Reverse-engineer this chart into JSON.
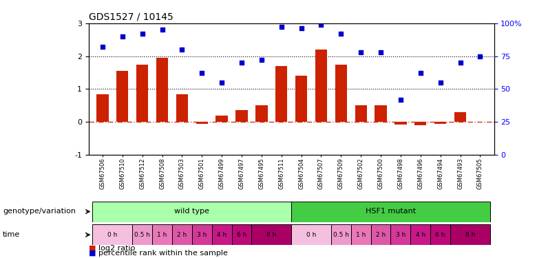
{
  "title": "GDS1527 / 10145",
  "samples": [
    "GSM67506",
    "GSM67510",
    "GSM67512",
    "GSM67508",
    "GSM67503",
    "GSM67501",
    "GSM67499",
    "GSM67497",
    "GSM67495",
    "GSM67511",
    "GSM67504",
    "GSM67507",
    "GSM67509",
    "GSM67502",
    "GSM67500",
    "GSM67498",
    "GSM67496",
    "GSM67494",
    "GSM67493",
    "GSM67505"
  ],
  "log2_ratio": [
    0.85,
    1.55,
    1.75,
    1.95,
    0.85,
    -0.05,
    0.2,
    0.35,
    0.5,
    1.7,
    1.4,
    2.2,
    1.75,
    0.5,
    0.5,
    -0.08,
    -0.1,
    -0.05,
    0.3,
    0.0
  ],
  "percentile": [
    82,
    90,
    92,
    95,
    80,
    62,
    55,
    70,
    72,
    97,
    96,
    99,
    92,
    78,
    78,
    42,
    62,
    55,
    70,
    75
  ],
  "bar_color": "#cc2200",
  "dot_color": "#0000cc",
  "ylim_left": [
    -1,
    3
  ],
  "ylim_right": [
    0,
    100
  ],
  "yticks_left": [
    -1,
    0,
    1,
    2,
    3
  ],
  "yticks_right": [
    0,
    25,
    50,
    75,
    100
  ],
  "ytick_labels_right": [
    "0",
    "25",
    "50",
    "75",
    "100%"
  ],
  "hline_y": [
    0,
    1,
    2
  ],
  "hline_styles": [
    "dashdot",
    "dotted",
    "dotted"
  ],
  "hline_colors": [
    "#cc2200",
    "#000000",
    "#000000"
  ],
  "genotype_groups": [
    {
      "label": "wild type",
      "start": 0,
      "end": 9,
      "color": "#aaffaa"
    },
    {
      "label": "HSF1 mutant",
      "start": 10,
      "end": 19,
      "color": "#44cc44"
    }
  ],
  "time_segments": [
    {
      "label": "0 h",
      "start": 0,
      "end": 1,
      "color": "#f5c0e0"
    },
    {
      "label": "0.5 h",
      "start": 2,
      "end": 2,
      "color": "#ee99cc"
    },
    {
      "label": "1 h",
      "start": 3,
      "end": 3,
      "color": "#e878b8"
    },
    {
      "label": "2 h",
      "start": 4,
      "end": 4,
      "color": "#de58a8"
    },
    {
      "label": "3 h",
      "start": 5,
      "end": 5,
      "color": "#d43898"
    },
    {
      "label": "4 h",
      "start": 6,
      "end": 6,
      "color": "#c81888"
    },
    {
      "label": "6 h",
      "start": 7,
      "end": 7,
      "color": "#bc0878"
    },
    {
      "label": "8 h",
      "start": 8,
      "end": 9,
      "color": "#aa0066"
    },
    {
      "label": "0 h",
      "start": 10,
      "end": 11,
      "color": "#f5c0e0"
    },
    {
      "label": "0.5 h",
      "start": 12,
      "end": 12,
      "color": "#ee99cc"
    },
    {
      "label": "1 h",
      "start": 13,
      "end": 13,
      "color": "#e878b8"
    },
    {
      "label": "2 h",
      "start": 14,
      "end": 14,
      "color": "#de58a8"
    },
    {
      "label": "3 h",
      "start": 15,
      "end": 15,
      "color": "#d43898"
    },
    {
      "label": "4 h",
      "start": 16,
      "end": 16,
      "color": "#c81888"
    },
    {
      "label": "6 h",
      "start": 17,
      "end": 17,
      "color": "#bc0878"
    },
    {
      "label": "8 h",
      "start": 18,
      "end": 19,
      "color": "#aa0066"
    }
  ],
  "legend_bar_label": "log2 ratio",
  "legend_dot_label": "percentile rank within the sample",
  "genotype_label": "genotype/variation",
  "time_label": "time"
}
